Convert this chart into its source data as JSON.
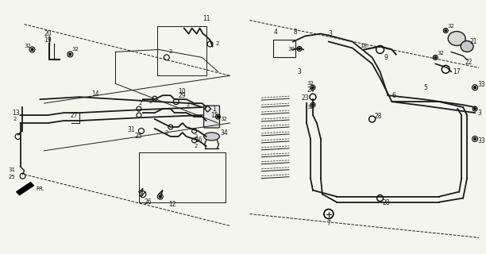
{
  "bg_color": "#f5f5f0",
  "line_color": "#1a1a1a",
  "fig_width": 6.12,
  "fig_height": 3.2,
  "dpi": 100
}
